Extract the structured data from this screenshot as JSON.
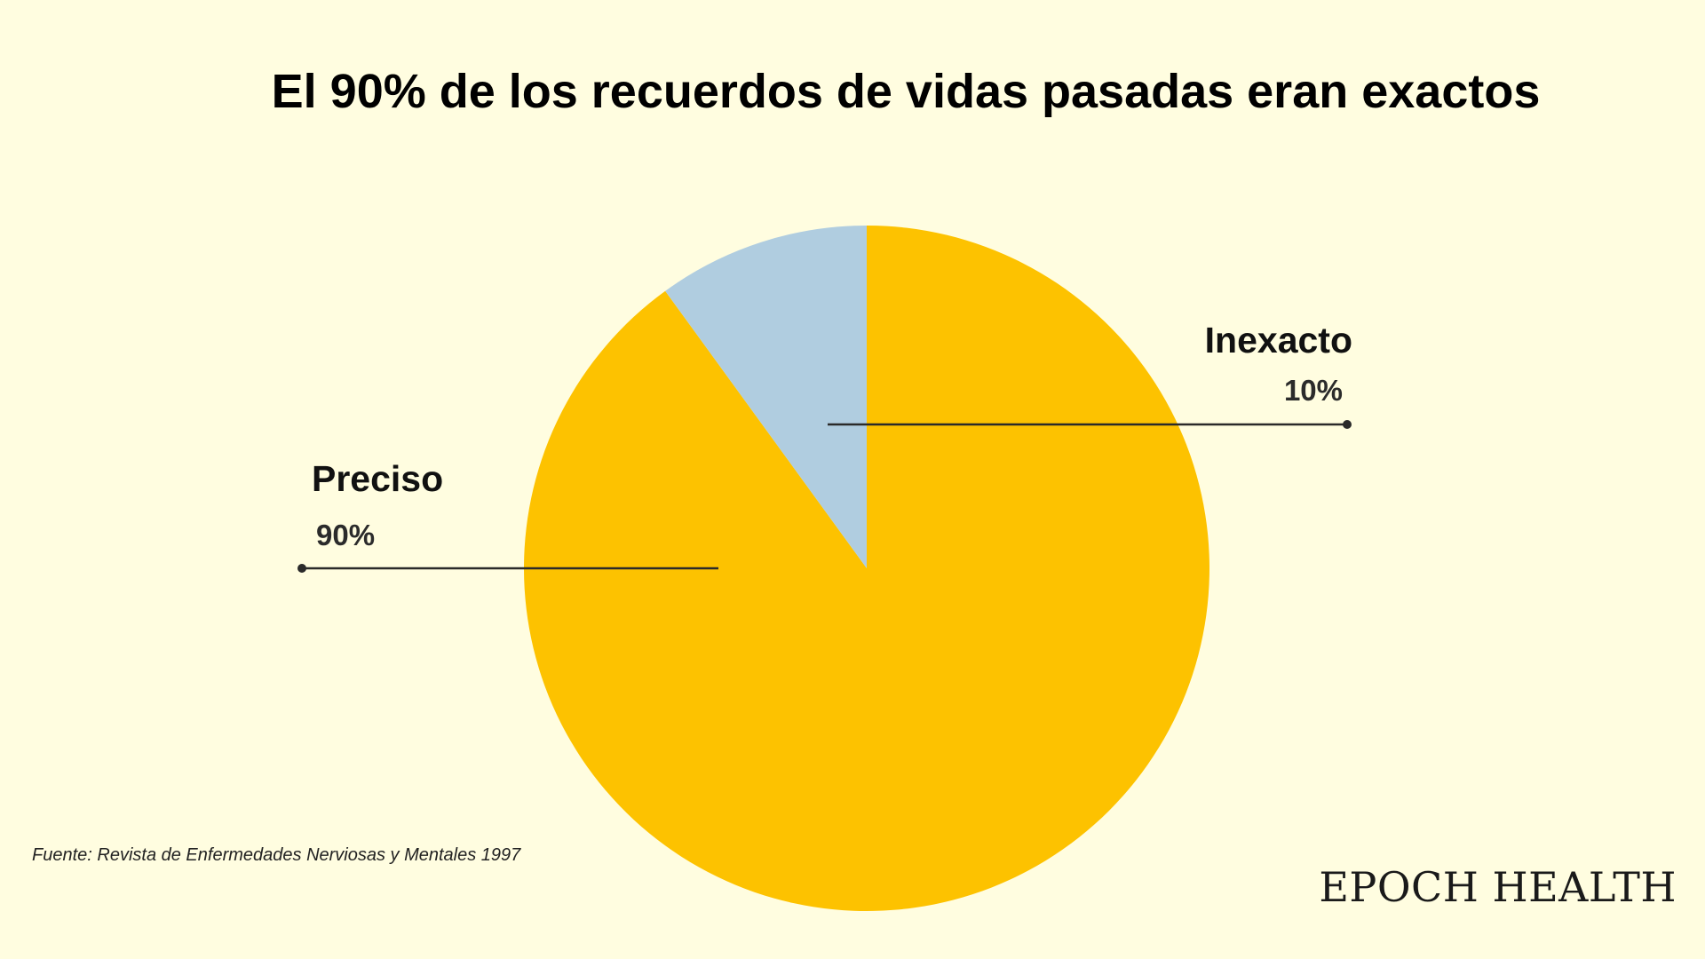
{
  "chart_data": {
    "type": "pie",
    "title": "El 90% de los recuerdos de vidas pasadas eran exactos",
    "slices": [
      {
        "name": "Preciso",
        "value": 90,
        "label": "90%",
        "color": "#FDC200"
      },
      {
        "name": "Inexacto",
        "value": 10,
        "label": "10%",
        "color": "#B0CDE0"
      }
    ],
    "start_angle_deg": 0,
    "direction": "clockwise"
  },
  "footer": {
    "source": "Fuente: Revista de Enfermedades Nerviosas y Mentales 1997",
    "brand": "EPOCH HEALTH"
  },
  "colors": {
    "background": "#FFFDE0",
    "leader_line": "#2a2a2a"
  }
}
